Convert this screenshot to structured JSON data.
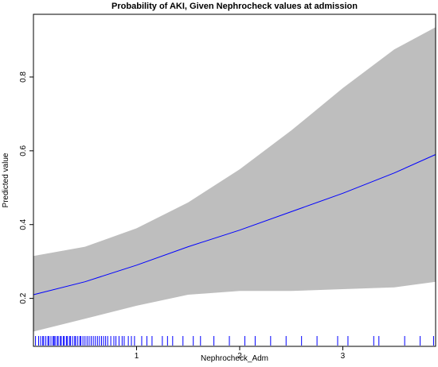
{
  "chart_data": {
    "type": "line",
    "title": "Probability of AKI, Given Nephrocheck values at admission",
    "xlabel": "Nephrocheck_Adm",
    "ylabel": "Predicted value",
    "xlim": [
      0.0,
      3.9
    ],
    "ylim": [
      0.07,
      0.97
    ],
    "xticks": [
      1,
      2,
      3
    ],
    "yticks": [
      0.2,
      0.4,
      0.6,
      0.8
    ],
    "xtick_labels": [
      "1",
      "2",
      "3"
    ],
    "ytick_labels": [
      "0.2",
      "0.4",
      "0.6",
      "0.8"
    ],
    "grid": false,
    "legend": "none",
    "series": [
      {
        "kind": "line",
        "color": "#0000ff",
        "x": [
          0.0,
          0.5,
          1.0,
          1.5,
          2.0,
          2.5,
          3.0,
          3.5,
          3.9
        ],
        "y": [
          0.21,
          0.245,
          0.29,
          0.34,
          0.385,
          0.435,
          0.485,
          0.54,
          0.59
        ]
      },
      {
        "kind": "confidence_band",
        "color": "#bebebe",
        "x": [
          0.0,
          0.5,
          1.0,
          1.5,
          2.0,
          2.5,
          3.0,
          3.5,
          3.9
        ],
        "lower": [
          0.11,
          0.145,
          0.18,
          0.21,
          0.22,
          0.22,
          0.225,
          0.23,
          0.245
        ],
        "upper": [
          0.315,
          0.34,
          0.39,
          0.46,
          0.55,
          0.655,
          0.77,
          0.875,
          0.935
        ]
      }
    ],
    "rug": {
      "color": "#0000ff",
      "x": [
        0.02,
        0.05,
        0.07,
        0.09,
        0.1,
        0.12,
        0.14,
        0.15,
        0.17,
        0.19,
        0.2,
        0.21,
        0.23,
        0.24,
        0.26,
        0.27,
        0.29,
        0.3,
        0.32,
        0.33,
        0.35,
        0.36,
        0.38,
        0.4,
        0.41,
        0.43,
        0.45,
        0.46,
        0.48,
        0.5,
        0.52,
        0.54,
        0.56,
        0.58,
        0.6,
        0.62,
        0.64,
        0.66,
        0.68,
        0.7,
        0.72,
        0.75,
        0.78,
        0.8,
        0.83,
        0.86,
        0.88,
        0.92,
        0.95,
        0.98,
        1.05,
        1.1,
        1.15,
        1.25,
        1.3,
        1.35,
        1.45,
        1.55,
        1.62,
        1.75,
        1.9,
        2.05,
        2.15,
        2.3,
        2.45,
        2.6,
        2.75,
        2.95,
        3.05,
        3.3,
        3.35,
        3.6,
        3.75,
        3.88
      ]
    }
  }
}
